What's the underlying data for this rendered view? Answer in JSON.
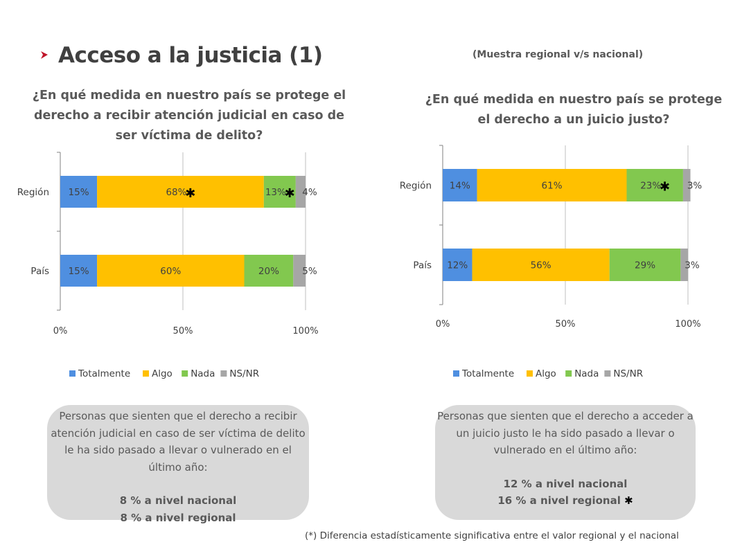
{
  "header": {
    "title": "Acceso a la justicia (1)",
    "subtitle": "(Muestra regional v/s nacional)"
  },
  "colors": {
    "Totalmente": "#4f8fe0",
    "Algo": "#ffc000",
    "Nada": "#82c84f",
    "NS/NR": "#a6a6a6",
    "accent": "#c0152a"
  },
  "chart_data": [
    {
      "type": "bar",
      "orientation": "horizontal",
      "stacked": true,
      "title": "¿En qué medida en nuestro país se protege el derecho a recibir atención judicial en caso de ser víctima de delito?",
      "categories": [
        "Región",
        "País"
      ],
      "series": [
        {
          "name": "Totalmente",
          "values": [
            15,
            15
          ],
          "labels": [
            "15%",
            "15%"
          ]
        },
        {
          "name": "Algo",
          "values": [
            68,
            60
          ],
          "labels": [
            "68%",
            "60%"
          ]
        },
        {
          "name": "Nada",
          "values": [
            13,
            20
          ],
          "labels": [
            "13%",
            "20%"
          ]
        },
        {
          "name": "NS/NR",
          "values": [
            4,
            5
          ],
          "labels": [
            "4%",
            "5%"
          ]
        }
      ],
      "significant": {
        "Región": [
          "Algo",
          "Nada"
        ]
      },
      "xticks": [
        "0%",
        "50%",
        "100%"
      ],
      "xlim": [
        0,
        100
      ],
      "grid": true,
      "legend": "bottom"
    },
    {
      "type": "bar",
      "orientation": "horizontal",
      "stacked": true,
      "title": "¿En qué medida en nuestro país se protege el derecho a un juicio justo?",
      "categories": [
        "Región",
        "País"
      ],
      "series": [
        {
          "name": "Totalmente",
          "values": [
            14,
            12
          ],
          "labels": [
            "14%",
            "12%"
          ]
        },
        {
          "name": "Algo",
          "values": [
            61,
            56
          ],
          "labels": [
            "61%",
            "56%"
          ]
        },
        {
          "name": "Nada",
          "values": [
            23,
            29
          ],
          "labels": [
            "23%",
            "29%"
          ]
        },
        {
          "name": "NS/NR",
          "values": [
            3,
            3
          ],
          "labels": [
            "3%",
            "3%"
          ]
        }
      ],
      "significant": {
        "Región": [
          "Nada"
        ]
      },
      "xticks": [
        "0%",
        "50%",
        "100%"
      ],
      "xlim": [
        0,
        100
      ],
      "grid": true,
      "legend": "bottom"
    }
  ],
  "boxes": {
    "left": {
      "description": "Personas que sienten que el derecho a recibir atención judicial en caso de ser víctima de delito le ha sido pasado a llevar o vulnerado en el último año:",
      "national": "8 % a nivel nacional",
      "regional": "8 % a nivel regional"
    },
    "right": {
      "description": "Personas que sienten que el derecho a acceder a un juicio justo le ha sido pasado a llevar o vulnerado en el último año:",
      "national": "12 % a nivel nacional",
      "regional": "16 % a nivel regional"
    }
  },
  "footnote": "(*) Diferencia estadísticamente significativa entre el valor regional y el nacional",
  "star": "✱"
}
